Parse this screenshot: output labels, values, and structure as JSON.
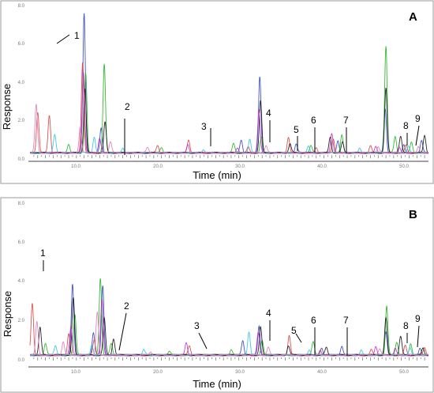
{
  "figure": {
    "y_axis_title": "Response",
    "x_axis_title": "Time (min)"
  },
  "colors": {
    "blue": "#2e3fc9",
    "green": "#1fb21f",
    "red": "#d94040",
    "black": "#111111",
    "magenta": "#c02fc0",
    "cyan": "#2fc4d9",
    "pink": "#e07ab5",
    "gray": "#888888"
  },
  "chart_data": [
    {
      "panel": "A",
      "type": "line",
      "xlabel": "Time (min)",
      "ylabel": "Response",
      "xlim": [
        0,
        51.5
      ],
      "ylim": [
        -0.3,
        8.2
      ],
      "x_ticks": [
        10,
        20,
        30,
        40,
        50
      ],
      "x_tick_labels": [
        "10.0",
        "20.0",
        "30.0",
        "40.0",
        "50.0"
      ],
      "y_ticks": [
        0,
        2,
        4,
        6,
        8
      ],
      "y_tick_labels": [
        "0.0",
        "2.0",
        "4.0",
        "6.0",
        "8.0"
      ],
      "grid": false,
      "legend": "none",
      "series": [
        {
          "color": "blue",
          "peaks": [
            [
              7.0,
              7.8
            ],
            [
              9.2,
              1.4
            ],
            [
              27.3,
              0.7
            ],
            [
              29.7,
              4.3
            ],
            [
              34.4,
              0.5
            ],
            [
              39.8,
              0.7
            ],
            [
              45.9,
              2.5
            ],
            [
              48.3,
              0.5
            ],
            [
              50.6,
              0.7
            ]
          ]
        },
        {
          "color": "green",
          "peaks": [
            [
              5.0,
              0.5
            ],
            [
              7.2,
              4.5
            ],
            [
              9.6,
              5.0
            ],
            [
              17.0,
              0.3
            ],
            [
              26.3,
              0.5
            ],
            [
              29.9,
              0.9
            ],
            [
              36.3,
              0.4
            ],
            [
              40.3,
              1.0
            ],
            [
              46.0,
              6.0
            ],
            [
              47.2,
              0.9
            ],
            [
              49.3,
              0.6
            ]
          ]
        },
        {
          "color": "red",
          "peaks": [
            [
              1.0,
              2.3
            ],
            [
              2.5,
              2.1
            ],
            [
              6.8,
              5.1
            ],
            [
              16.5,
              0.4
            ],
            [
              20.5,
              0.7
            ],
            [
              28.2,
              0.3
            ],
            [
              33.4,
              0.9
            ],
            [
              37.0,
              0.3
            ],
            [
              39.2,
              0.8
            ],
            [
              44.0,
              0.4
            ],
            [
              48.6,
              0.4
            ]
          ]
        },
        {
          "color": "black",
          "peaks": [
            [
              7.1,
              3.6
            ],
            [
              9.7,
              1.7
            ],
            [
              29.8,
              2.9
            ],
            [
              33.6,
              0.5
            ],
            [
              38.8,
              0.9
            ],
            [
              40.4,
              0.6
            ],
            [
              46.0,
              3.6
            ],
            [
              47.9,
              0.9
            ],
            [
              51.0,
              1.0
            ]
          ]
        },
        {
          "color": "magenta",
          "peaks": [
            [
              6.9,
              4.5
            ],
            [
              9.0,
              0.8
            ],
            [
              20.4,
              0.5
            ],
            [
              26.8,
              0.3
            ],
            [
              29.6,
              2.4
            ],
            [
              39.0,
              1.1
            ],
            [
              44.7,
              0.4
            ],
            [
              47.7,
              0.3
            ]
          ]
        },
        {
          "color": "cyan",
          "peaks": [
            [
              3.2,
              1.0
            ],
            [
              8.3,
              0.9
            ],
            [
              12.0,
              0.3
            ],
            [
              22.4,
              0.2
            ],
            [
              28.4,
              0.8
            ],
            [
              36.0,
              0.4
            ],
            [
              42.6,
              0.3
            ],
            [
              48.9,
              0.4
            ]
          ]
        },
        {
          "color": "pink",
          "peaks": [
            [
              0.8,
              2.7
            ],
            [
              6.5,
              1.4
            ],
            [
              10.4,
              0.6
            ],
            [
              15.2,
              0.3
            ],
            [
              30.5,
              0.4
            ],
            [
              45.0,
              0.3
            ],
            [
              50.2,
              0.4
            ]
          ]
        }
      ],
      "peak_labels": [
        "1",
        "2",
        "3",
        "4",
        "5",
        "6",
        "7",
        "8",
        "9"
      ]
    },
    {
      "panel": "B",
      "type": "line",
      "xlabel": "Time (min)",
      "ylabel": "Response",
      "xlim": [
        0,
        51.5
      ],
      "ylim": [
        -0.3,
        8.2
      ],
      "x_ticks": [
        10,
        20,
        30,
        40,
        50
      ],
      "x_tick_labels": [
        "10.0",
        "20.0",
        "30.0",
        "40.0",
        "50.0"
      ],
      "y_ticks": [
        0,
        2,
        4,
        6,
        8
      ],
      "y_tick_labels": [
        "0.0",
        "2.0",
        "4.0",
        "6.0",
        "8.0"
      ],
      "grid": false,
      "legend": "none",
      "series": [
        {
          "color": "blue",
          "peaks": [
            [
              5.5,
              3.9
            ],
            [
              8.2,
              1.2
            ],
            [
              9.4,
              3.8
            ],
            [
              27.5,
              0.8
            ],
            [
              29.6,
              1.6
            ],
            [
              37.7,
              0.4
            ],
            [
              40.3,
              0.5
            ],
            [
              46.0,
              1.3
            ],
            [
              50.4,
              0.4
            ]
          ]
        },
        {
          "color": "green",
          "peaks": [
            [
              2.0,
              0.6
            ],
            [
              5.8,
              2.2
            ],
            [
              9.1,
              4.2
            ],
            [
              10.5,
              0.6
            ],
            [
              18.0,
              0.2
            ],
            [
              26.0,
              0.3
            ],
            [
              30.0,
              0.8
            ],
            [
              36.6,
              0.7
            ],
            [
              46.1,
              2.7
            ],
            [
              47.4,
              0.7
            ],
            [
              49.2,
              0.6
            ]
          ]
        },
        {
          "color": "red",
          "peaks": [
            [
              0.3,
              2.8
            ],
            [
              5.0,
              1.2
            ],
            [
              8.3,
              0.8
            ],
            [
              20.6,
              0.5
            ],
            [
              33.5,
              1.1
            ],
            [
              37.5,
              0.3
            ],
            [
              44.1,
              0.3
            ],
            [
              48.5,
              0.5
            ],
            [
              51.0,
              0.4
            ]
          ]
        },
        {
          "color": "black",
          "peaks": [
            [
              1.3,
              1.5
            ],
            [
              5.6,
              3.1
            ],
            [
              9.6,
              2.0
            ],
            [
              10.8,
              0.9
            ],
            [
              29.8,
              1.5
            ],
            [
              33.4,
              0.5
            ],
            [
              38.3,
              0.4
            ],
            [
              46.0,
              2.0
            ],
            [
              47.9,
              1.0
            ],
            [
              50.8,
              0.4
            ]
          ]
        },
        {
          "color": "magenta",
          "peaks": [
            [
              5.3,
              1.5
            ],
            [
              9.3,
              3.0
            ],
            [
              20.2,
              0.7
            ],
            [
              29.5,
              1.2
            ],
            [
              44.7,
              0.5
            ],
            [
              47.2,
              0.4
            ]
          ]
        },
        {
          "color": "cyan",
          "peaks": [
            [
              3.3,
              0.5
            ],
            [
              8.0,
              0.6
            ],
            [
              14.7,
              0.3
            ],
            [
              28.3,
              1.3
            ],
            [
              36.1,
              0.3
            ],
            [
              42.8,
              0.3
            ],
            [
              49.1,
              0.4
            ]
          ]
        },
        {
          "color": "pink",
          "peaks": [
            [
              0.9,
              1.8
            ],
            [
              4.3,
              0.7
            ],
            [
              8.7,
              2.3
            ],
            [
              15.6,
              0.2
            ],
            [
              30.8,
              0.4
            ],
            [
              45.2,
              0.3
            ]
          ]
        }
      ],
      "peak_labels": [
        "1",
        "2",
        "3",
        "4",
        "5",
        "6",
        "7",
        "8",
        "9"
      ]
    }
  ]
}
